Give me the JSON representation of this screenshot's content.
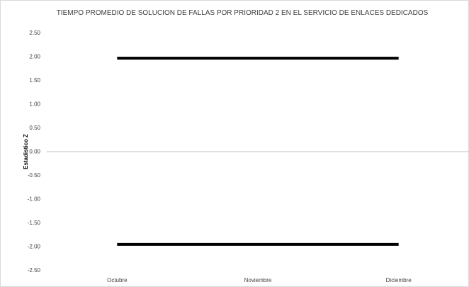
{
  "chart_data": {
    "type": "line",
    "title": "TIEMPO PROMEDIO DE SOLUCION DE FALLAS POR PRIORIDAD 2 EN EL SERVICIO DE ENLACES DEDICADOS",
    "xlabel": "",
    "ylabel": "Estadistico Z",
    "categories": [
      "Octubre",
      "Noviembre",
      "Diciembre"
    ],
    "series": [
      {
        "values": [
          1.96,
          1.96,
          1.96
        ],
        "color": "#000000"
      },
      {
        "values": [
          -1.96,
          -1.96,
          -1.96
        ],
        "color": "#000000"
      }
    ],
    "ylim": [
      -2.5,
      2.5
    ],
    "yticks": [
      "2.50",
      "2.00",
      "1.50",
      "1.00",
      "0.50",
      "0.00",
      "-0.50",
      "-1.00",
      "-1.50",
      "-2.00",
      "-2.50"
    ],
    "grid": false,
    "legend": "none"
  }
}
